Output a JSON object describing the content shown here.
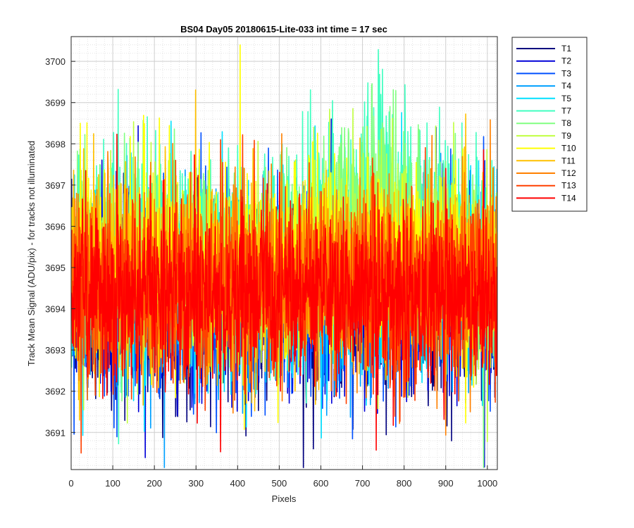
{
  "chart_data": {
    "type": "line",
    "title": "BS04 Day05 20180615-Lite-033 int time = 17 sec",
    "xlabel": "Pixels",
    "ylabel": "Track Mean Signal (ADU/pix) - for tracks not illuminated",
    "xlim": [
      0,
      1024
    ],
    "ylim": [
      3690.1,
      3700.6
    ],
    "x_ticks": [
      0,
      100,
      200,
      300,
      400,
      500,
      600,
      700,
      800,
      900,
      1000
    ],
    "y_ticks": [
      3691,
      3692,
      3693,
      3694,
      3695,
      3696,
      3697,
      3698,
      3699,
      3700
    ],
    "grid": "major and minor",
    "legend_position": "outside-right",
    "n_points": 1024,
    "series": [
      {
        "name": "T1",
        "color": "#00007f",
        "mean": 3694.1,
        "noise": 1.1
      },
      {
        "name": "T2",
        "color": "#0000d9",
        "mean": 3694.2,
        "noise": 1.1
      },
      {
        "name": "T3",
        "color": "#0050ff",
        "mean": 3694.3,
        "noise": 1.1
      },
      {
        "name": "T4",
        "color": "#00a0ff",
        "mean": 3694.5,
        "noise": 1.1
      },
      {
        "name": "T5",
        "color": "#00e0ff",
        "mean": 3694.7,
        "noise": 1.1
      },
      {
        "name": "T7",
        "color": "#40ffc0",
        "mean": 3695.4,
        "noise": 1.2
      },
      {
        "name": "T8",
        "color": "#80ff80",
        "mean": 3695.2,
        "noise": 1.1
      },
      {
        "name": "T9",
        "color": "#c0ff40",
        "mean": 3695.0,
        "noise": 1.1
      },
      {
        "name": "T10",
        "color": "#ffff00",
        "mean": 3695.0,
        "noise": 1.1
      },
      {
        "name": "T11",
        "color": "#ffc000",
        "mean": 3694.8,
        "noise": 1.1
      },
      {
        "name": "T12",
        "color": "#ff8000",
        "mean": 3694.7,
        "noise": 1.1
      },
      {
        "name": "T13",
        "color": "#ff4000",
        "mean": 3694.5,
        "noise": 1.1
      },
      {
        "name": "T14",
        "color": "#ff0000",
        "mean": 3694.3,
        "noise": 1.0
      }
    ]
  }
}
